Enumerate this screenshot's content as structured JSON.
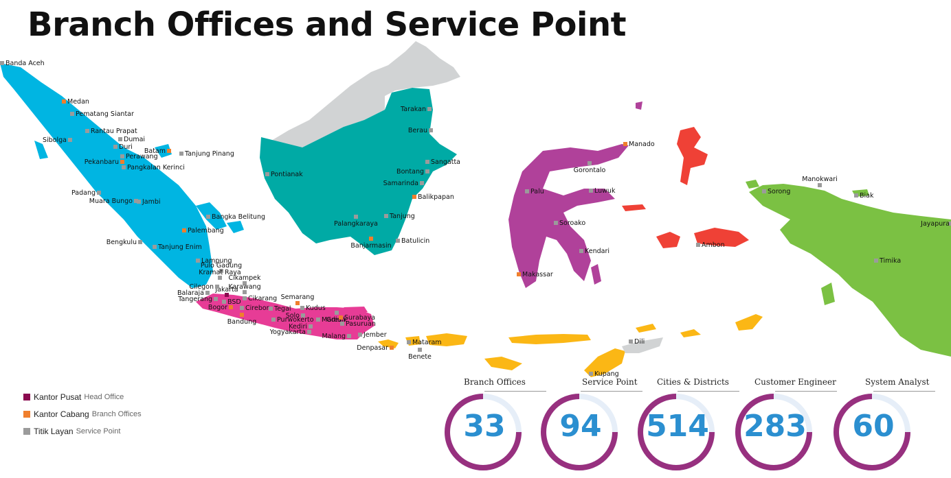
{
  "page": {
    "title": "Branch Offices and Service Point"
  },
  "colors": {
    "sumatra": "#00b5e2",
    "java": "#e73c96",
    "kalimantan": "#00aaa5",
    "sulawesi": "#b0419a",
    "maluku": "#ef4136",
    "papua": "#7bc143",
    "nusa_tenggara": "#fbb715",
    "foreign": "#d1d3d4",
    "head_office": "#8b0a4f",
    "branch_office": "#f07f2d",
    "service_point": "#9b9b9b",
    "ring": "#97307f",
    "ring_track": "#e6eef8",
    "stat_number": "#2b8fd0"
  },
  "legend": [
    {
      "label": "Kantor Pusat",
      "label_en": "Head Office",
      "type": "head_office"
    },
    {
      "label": "Kantor Cabang",
      "label_en": "Branch Offices",
      "type": "branch_office"
    },
    {
      "label": "Titik Layan",
      "label_en": "Service Point",
      "type": "service_point"
    }
  ],
  "stats": [
    {
      "label": "Branch Offices",
      "value": "33"
    },
    {
      "label": "Service Point",
      "value": "94"
    },
    {
      "label": "Cities & Districts",
      "value": "514"
    },
    {
      "label": "Customer Engineer",
      "value": "283"
    },
    {
      "label": "System Analyst",
      "value": "60"
    }
  ],
  "cities": [
    {
      "name": "Banda Aceh",
      "type": "service_point"
    },
    {
      "name": "Medan",
      "type": "branch_office"
    },
    {
      "name": "Pematang Siantar",
      "type": "service_point"
    },
    {
      "name": "Rantau Prapat",
      "type": "service_point"
    },
    {
      "name": "Sibolga",
      "type": "service_point"
    },
    {
      "name": "Dumai",
      "type": "service_point"
    },
    {
      "name": "Duri",
      "type": "service_point"
    },
    {
      "name": "Batam",
      "type": "branch_office"
    },
    {
      "name": "Tanjung Pinang",
      "type": "service_point"
    },
    {
      "name": "Perawang",
      "type": "service_point"
    },
    {
      "name": "Pekanbaru",
      "type": "branch_office"
    },
    {
      "name": "Pangkalan Kerinci",
      "type": "service_point"
    },
    {
      "name": "Padang",
      "type": "service_point"
    },
    {
      "name": "Muara Bungo",
      "type": "service_point"
    },
    {
      "name": "Jambi",
      "type": "service_point"
    },
    {
      "name": "Bangka Belitung",
      "type": "service_point"
    },
    {
      "name": "Palembang",
      "type": "branch_office"
    },
    {
      "name": "Bengkulu",
      "type": "service_point"
    },
    {
      "name": "Tanjung Enim",
      "type": "service_point"
    },
    {
      "name": "Lampung",
      "type": "service_point"
    },
    {
      "name": "Pulo Gadung",
      "type": "service_point"
    },
    {
      "name": "Kramat Raya",
      "type": "service_point"
    },
    {
      "name": "Jakarta",
      "type": "head_office"
    },
    {
      "name": "Cikampek",
      "type": "service_point"
    },
    {
      "name": "Cilegon",
      "type": "service_point"
    },
    {
      "name": "Balaraja",
      "type": "service_point"
    },
    {
      "name": "Tangerang",
      "type": "service_point"
    },
    {
      "name": "Karawang",
      "type": "service_point"
    },
    {
      "name": "BSD",
      "type": "service_point"
    },
    {
      "name": "Cikarang",
      "type": "service_point"
    },
    {
      "name": "Bogor",
      "type": "branch_office"
    },
    {
      "name": "Cirebon",
      "type": "service_point"
    },
    {
      "name": "Bandung",
      "type": "branch_office"
    },
    {
      "name": "Tegal",
      "type": "service_point"
    },
    {
      "name": "Semarang",
      "type": "branch_office"
    },
    {
      "name": "Kudus",
      "type": "service_point"
    },
    {
      "name": "Solo",
      "type": "service_point"
    },
    {
      "name": "Purwokerto",
      "type": "service_point"
    },
    {
      "name": "Gresik",
      "type": "service_point"
    },
    {
      "name": "Madiun",
      "type": "service_point"
    },
    {
      "name": "Surabaya",
      "type": "branch_office"
    },
    {
      "name": "Pasuruan",
      "type": "service_point"
    },
    {
      "name": "Kediri",
      "type": "service_point"
    },
    {
      "name": "Yogyakarta",
      "type": "service_point"
    },
    {
      "name": "Malang",
      "type": "service_point"
    },
    {
      "name": "Jember",
      "type": "service_point"
    },
    {
      "name": "Denpasar",
      "type": "branch_office"
    },
    {
      "name": "Mataram",
      "type": "service_point"
    },
    {
      "name": "Benete",
      "type": "service_point"
    },
    {
      "name": "Tarakan",
      "type": "service_point"
    },
    {
      "name": "Berau",
      "type": "service_point"
    },
    {
      "name": "Sangatta",
      "type": "service_point"
    },
    {
      "name": "Bontang",
      "type": "service_point"
    },
    {
      "name": "Samarinda",
      "type": "service_point"
    },
    {
      "name": "Balikpapan",
      "type": "branch_office"
    },
    {
      "name": "Pontianak",
      "type": "service_point"
    },
    {
      "name": "Tanjung",
      "type": "service_point"
    },
    {
      "name": "Palangkaraya",
      "type": "service_point"
    },
    {
      "name": "Banjarmasin",
      "type": "branch_office"
    },
    {
      "name": "Batulicin",
      "type": "service_point"
    },
    {
      "name": "Manado",
      "type": "branch_office"
    },
    {
      "name": "Gorontalo",
      "type": "service_point"
    },
    {
      "name": "Palu",
      "type": "service_point"
    },
    {
      "name": "Luwuk",
      "type": "service_point"
    },
    {
      "name": "Soroako",
      "type": "service_point"
    },
    {
      "name": "Kendari",
      "type": "service_point"
    },
    {
      "name": "Makassar",
      "type": "branch_office"
    },
    {
      "name": "Ambon",
      "type": "service_point"
    },
    {
      "name": "Sorong",
      "type": "service_point"
    },
    {
      "name": "Manokwari",
      "type": "service_point"
    },
    {
      "name": "Biak",
      "type": "service_point"
    },
    {
      "name": "Jayapura",
      "type": "service_point"
    },
    {
      "name": "Timika",
      "type": "service_point"
    },
    {
      "name": "Dili",
      "type": "service_point"
    },
    {
      "name": "Kupang",
      "type": "service_point"
    }
  ]
}
